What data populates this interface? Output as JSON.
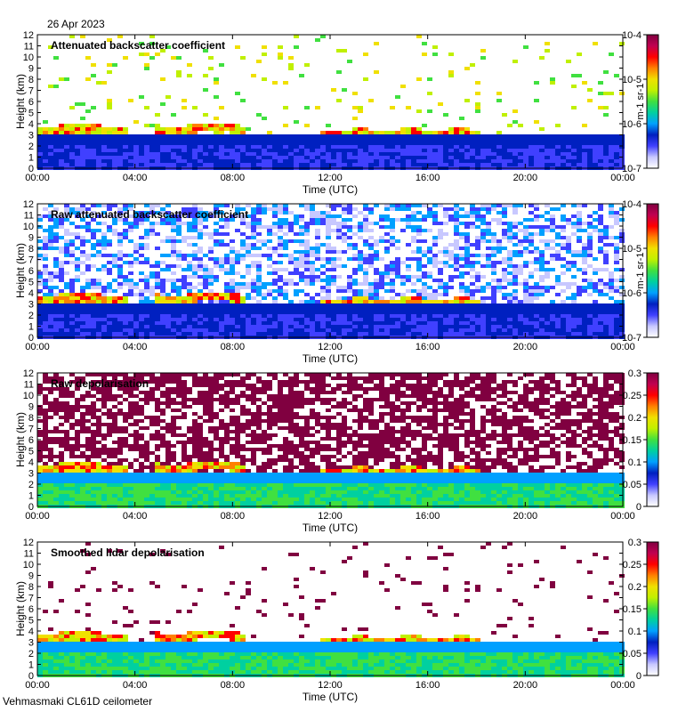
{
  "header": {
    "date": "26 Apr 2023"
  },
  "footer": {
    "site": "Vehmasmaki CL61D ceilometer"
  },
  "colors": {
    "colormap": [
      "#ffffff",
      "#c8c8ff",
      "#4040ff",
      "#0020c0",
      "#00a0ff",
      "#00d0a0",
      "#40e040",
      "#c0f000",
      "#f0e000",
      "#ff8000",
      "#ff0000",
      "#c00050",
      "#800040"
    ]
  },
  "chart_data": [
    {
      "type": "heatmap",
      "title": "Attenuated backscatter coefficient",
      "xlabel": "Time (UTC)",
      "ylabel": "Height (km)",
      "xticks": [
        "00:00",
        "04:00",
        "08:00",
        "12:00",
        "16:00",
        "20:00",
        "00:00"
      ],
      "yticks": [
        "0",
        "1",
        "2",
        "3",
        "4",
        "5",
        "6",
        "7",
        "8",
        "9",
        "10",
        "11",
        "12"
      ],
      "xlim_hours": [
        0,
        24
      ],
      "ylim": [
        0,
        12
      ],
      "colorbar": {
        "scale": "log",
        "ticks": [
          "10-7",
          "10-6",
          "10-5",
          "10-4"
        ],
        "label": "m-1 sr-1",
        "range": [
          1e-07,
          0.0001
        ]
      },
      "cloud_layer_km": [
        3,
        4
      ]
    },
    {
      "type": "heatmap",
      "title": "Raw attenuated backscatter coefficient",
      "xlabel": "Time (UTC)",
      "ylabel": "Height (km)",
      "xticks": [
        "00:00",
        "04:00",
        "08:00",
        "12:00",
        "16:00",
        "20:00",
        "00:00"
      ],
      "yticks": [
        "0",
        "1",
        "2",
        "3",
        "4",
        "5",
        "6",
        "7",
        "8",
        "9",
        "10",
        "11",
        "12"
      ],
      "xlim_hours": [
        0,
        24
      ],
      "ylim": [
        0,
        12
      ],
      "colorbar": {
        "scale": "log",
        "ticks": [
          "10-7",
          "10-6",
          "10-5",
          "10-4"
        ],
        "label": "m-1 sr-1",
        "range": [
          1e-07,
          0.0001
        ]
      },
      "cloud_layer_km": [
        3,
        4
      ]
    },
    {
      "type": "heatmap",
      "title": "Raw depolarisation",
      "xlabel": "Time (UTC)",
      "ylabel": "Height (km)",
      "xticks": [
        "00:00",
        "04:00",
        "08:00",
        "12:00",
        "16:00",
        "20:00",
        "00:00"
      ],
      "yticks": [
        "0",
        "1",
        "2",
        "3",
        "4",
        "5",
        "6",
        "7",
        "8",
        "9",
        "10",
        "11",
        "12"
      ],
      "xlim_hours": [
        0,
        24
      ],
      "ylim": [
        0,
        12
      ],
      "colorbar": {
        "scale": "linear",
        "ticks": [
          "0",
          "0.05",
          "0.1",
          "0.15",
          "0.2",
          "0.25",
          "0.3"
        ],
        "range": [
          0,
          0.3
        ]
      }
    },
    {
      "type": "heatmap",
      "title": "Smoothed lidar depolarisation",
      "xlabel": "Time (UTC)",
      "ylabel": "Height (km)",
      "xticks": [
        "00:00",
        "04:00",
        "08:00",
        "12:00",
        "16:00",
        "20:00",
        "00:00"
      ],
      "yticks": [
        "0",
        "1",
        "2",
        "3",
        "4",
        "5",
        "6",
        "7",
        "8",
        "9",
        "10",
        "11",
        "12"
      ],
      "xlim_hours": [
        0,
        24
      ],
      "ylim": [
        0,
        12
      ],
      "colorbar": {
        "scale": "linear",
        "ticks": [
          "0",
          "0.05",
          "0.1",
          "0.15",
          "0.2",
          "0.25",
          "0.3"
        ],
        "range": [
          0,
          0.3
        ]
      }
    }
  ]
}
